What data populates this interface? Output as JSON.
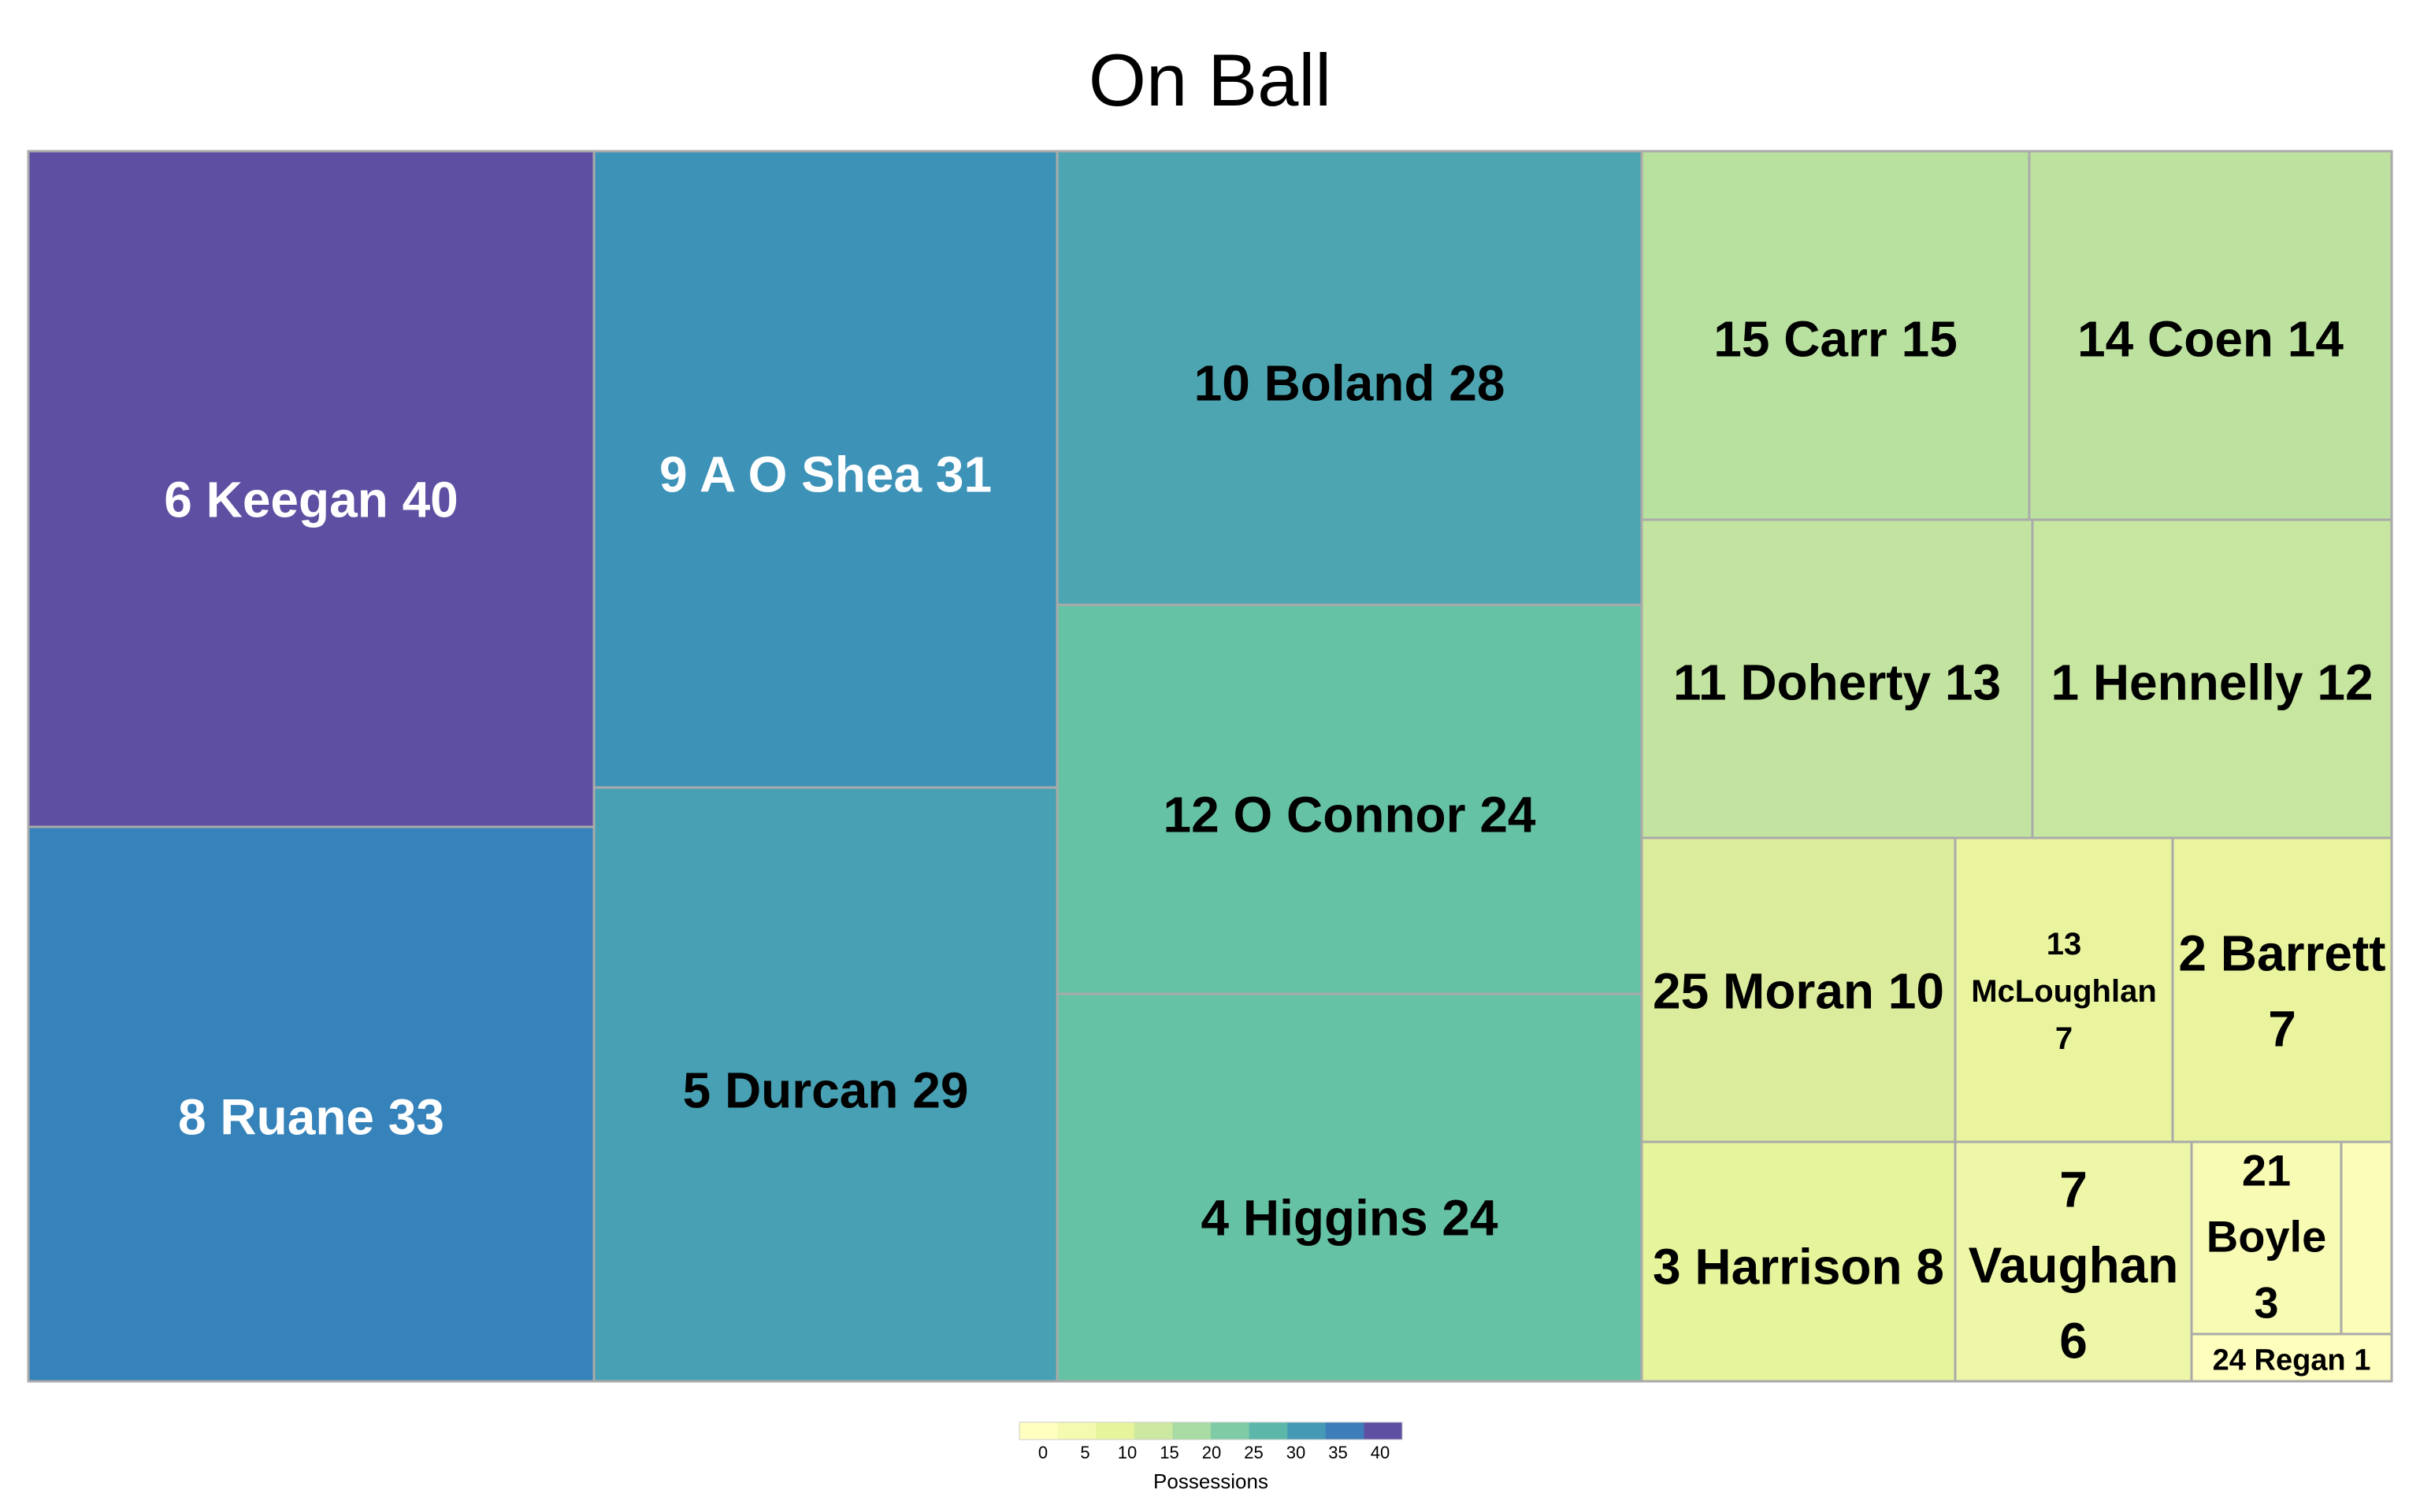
{
  "chart_data": {
    "type": "treemap",
    "title": "On Ball",
    "value_label": "Possessions",
    "cells": [
      {
        "lines": [
          "6 Keegan 40"
        ],
        "value": 40,
        "color": "#5e4fa2",
        "text_color": "#ffffff"
      },
      {
        "lines": [
          "8 Ruane 33"
        ],
        "value": 33,
        "color": "#3682ba",
        "text_color": "#ffffff"
      },
      {
        "lines": [
          "9 A O Shea 31"
        ],
        "value": 31,
        "color": "#3d92b8",
        "text_color": "#ffffff"
      },
      {
        "lines": [
          "5 Durcan 29"
        ],
        "value": 29,
        "color": "#47a0b3",
        "text_color": "#000000"
      },
      {
        "lines": [
          "10 Boland 28"
        ],
        "value": 28,
        "color": "#4da5b1",
        "text_color": "#000000"
      },
      {
        "lines": [
          "12 O Connor 24"
        ],
        "value": 24,
        "color": "#66c2a5",
        "text_color": "#000000"
      },
      {
        "lines": [
          "4 Higgins 24"
        ],
        "value": 24,
        "color": "#66c2a5",
        "text_color": "#000000"
      },
      {
        "lines": [
          "15 Carr 15"
        ],
        "value": 15,
        "color": "#b8e09f",
        "text_color": "#000000"
      },
      {
        "lines": [
          "14 Coen 14"
        ],
        "value": 14,
        "color": "#bde2a0",
        "text_color": "#000000"
      },
      {
        "lines": [
          "11 Doherty  13"
        ],
        "value": 13,
        "color": "#c2e4a0",
        "text_color": "#000000"
      },
      {
        "lines": [
          "1 Hennelly 12"
        ],
        "value": 12,
        "color": "#c7e6a0",
        "text_color": "#000000"
      },
      {
        "lines": [
          "25 Moran 10"
        ],
        "value": 10,
        "color": "#dcec9d",
        "text_color": "#000000"
      },
      {
        "lines": [
          "13",
          "McLoughlan",
          "7"
        ],
        "value": 7,
        "color": "#eaf49e",
        "text_color": "#000000"
      },
      {
        "lines": [
          "2 Barrett",
          "7"
        ],
        "value": 7,
        "color": "#eaf49e",
        "text_color": "#000000"
      },
      {
        "lines": [
          "3 Harrison 8"
        ],
        "value": 8,
        "color": "#e6f59b",
        "text_color": "#000000"
      },
      {
        "lines": [
          "7",
          "Vaughan",
          "6"
        ],
        "value": 6,
        "color": "#eef6a8",
        "text_color": "#000000"
      },
      {
        "lines": [
          "21",
          "Boyle",
          "3"
        ],
        "value": 3,
        "color": "#f7fbb3",
        "text_color": "#000000"
      },
      {
        "lines": [],
        "value": 2,
        "color": "#fbfdb9",
        "text_color": "#000000"
      },
      {
        "lines": [
          "24 Regan 1"
        ],
        "value": 1,
        "color": "#fefebd",
        "text_color": "#000000"
      }
    ],
    "legend": {
      "title": "Possessions",
      "ticks": [
        "0",
        "5",
        "10",
        "15",
        "20",
        "25",
        "30",
        "35",
        "40"
      ],
      "colors": [
        "#ffffbf",
        "#f4fab0",
        "#e6f59b",
        "#cde8a0",
        "#a9dba4",
        "#7fcba5",
        "#5cb7aa",
        "#449ab5",
        "#3c7dba",
        "#5e4fa2"
      ]
    }
  }
}
